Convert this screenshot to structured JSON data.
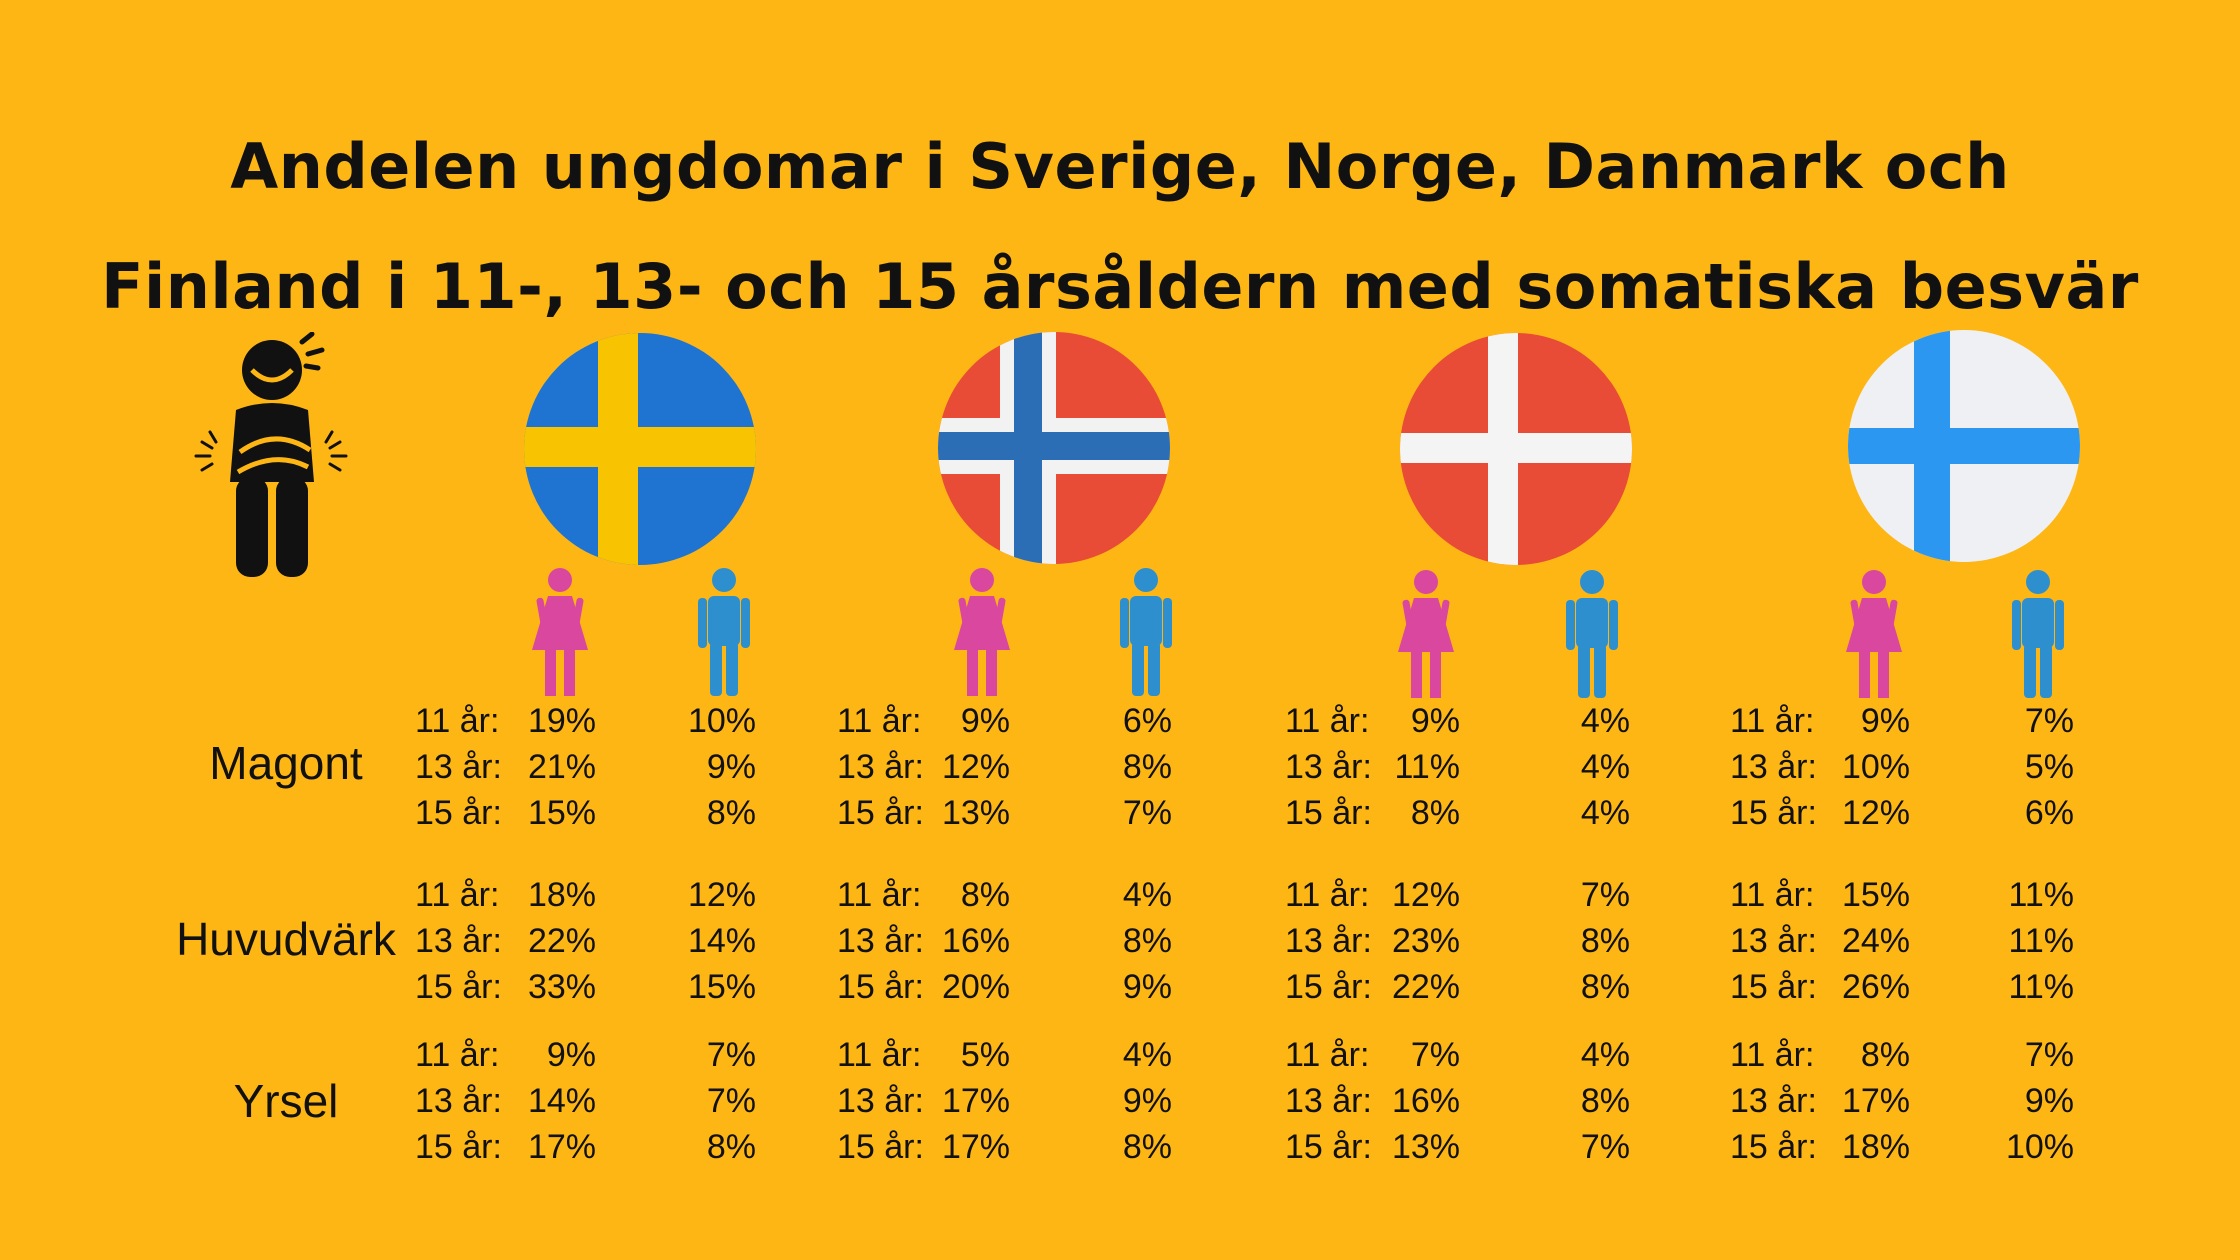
{
  "title": {
    "line1": "Andelen ungdomar i Sverige, Norge, Danmark och",
    "line2": "Finland i 11-, 13- och 15 årsåldern med somatiska besvär"
  },
  "colors": {
    "background": "#fdb614",
    "female": "#d9479f",
    "male": "#2e8fcf",
    "sweden_blue": "#1f74d1",
    "sweden_yellow": "#f8c300",
    "norway_red": "#e84b36",
    "norway_blue": "#2b6eb5",
    "denmark_red": "#e84b36",
    "finland_white": "#eef0f3",
    "finland_blue": "#2b97f0"
  },
  "icons": {
    "sick": "stomach-ache-person-icon",
    "female": "female-person-icon",
    "male": "male-person-icon"
  },
  "countries": [
    "sweden-flag",
    "norway-flag",
    "denmark-flag",
    "finland-flag"
  ],
  "categories": [
    {
      "name": "Magont",
      "ages": [
        "11 år:",
        "13 år:",
        "15 år:"
      ],
      "values": [
        {
          "female": [
            "19%",
            "21%",
            "15%"
          ],
          "male": [
            "10%",
            "9%",
            "8%"
          ]
        },
        {
          "female": [
            "9%",
            "12%",
            "13%"
          ],
          "male": [
            "6%",
            "8%",
            "7%"
          ]
        },
        {
          "female": [
            "9%",
            "11%",
            "8%"
          ],
          "male": [
            "4%",
            "4%",
            "4%"
          ]
        },
        {
          "female": [
            "9%",
            "10%",
            "12%"
          ],
          "male": [
            "7%",
            "5%",
            "6%"
          ]
        }
      ]
    },
    {
      "name": "Huvudvärk",
      "ages": [
        "11 år:",
        "13 år:",
        "15 år:"
      ],
      "values": [
        {
          "female": [
            "18%",
            "22%",
            "33%"
          ],
          "male": [
            "12%",
            "14%",
            "15%"
          ]
        },
        {
          "female": [
            "8%",
            "16%",
            "20%"
          ],
          "male": [
            "4%",
            "8%",
            "9%"
          ]
        },
        {
          "female": [
            "12%",
            "23%",
            "22%"
          ],
          "male": [
            "7%",
            "8%",
            "8%"
          ]
        },
        {
          "female": [
            "15%",
            "24%",
            "26%"
          ],
          "male": [
            "11%",
            "11%",
            "11%"
          ]
        }
      ]
    },
    {
      "name": "Yrsel",
      "ages": [
        "11 år:",
        "13 år:",
        "15 år:"
      ],
      "values": [
        {
          "female": [
            "9%",
            "14%",
            "17%"
          ],
          "male": [
            "7%",
            "7%",
            "8%"
          ]
        },
        {
          "female": [
            "5%",
            "17%",
            "17%"
          ],
          "male": [
            "4%",
            "9%",
            "8%"
          ]
        },
        {
          "female": [
            "7%",
            "16%",
            "13%"
          ],
          "male": [
            "4%",
            "8%",
            "7%"
          ]
        },
        {
          "female": [
            "8%",
            "17%",
            "18%"
          ],
          "male": [
            "7%",
            "9%",
            "10%"
          ]
        }
      ]
    }
  ]
}
